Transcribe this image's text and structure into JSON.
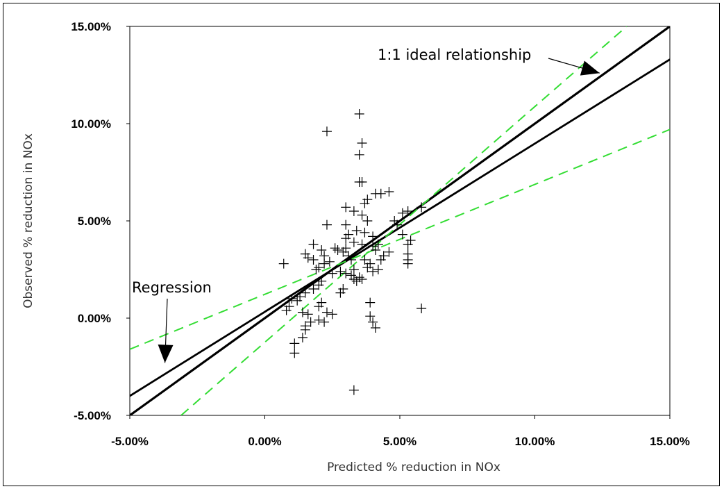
{
  "chart_data": {
    "type": "scatter",
    "title": "",
    "xlabel": "Predicted % reduction in NOx",
    "ylabel": "Observed % reduction in NOx",
    "xlim": [
      -5,
      15
    ],
    "ylim": [
      -5,
      15
    ],
    "x_ticks": [
      "-5.00%",
      "0.00%",
      "5.00%",
      "10.00%",
      "15.00%"
    ],
    "y_ticks": [
      "-5.00%",
      "0.00%",
      "5.00%",
      "10.00%",
      "15.00%"
    ],
    "x_tick_values": [
      -5,
      0,
      5,
      10,
      15
    ],
    "y_tick_values": [
      -5,
      0,
      5,
      10,
      15
    ],
    "grid": false,
    "marker": "+",
    "points": [
      [
        2.3,
        9.6
      ],
      [
        3.5,
        10.5
      ],
      [
        3.6,
        9.0
      ],
      [
        3.5,
        8.4
      ],
      [
        3.5,
        7.0
      ],
      [
        3.6,
        7.0
      ],
      [
        3.8,
        6.1
      ],
      [
        4.1,
        6.4
      ],
      [
        4.6,
        6.5
      ],
      [
        4.3,
        6.4
      ],
      [
        3.0,
        5.7
      ],
      [
        3.7,
        5.9
      ],
      [
        3.6,
        5.3
      ],
      [
        3.3,
        5.5
      ],
      [
        3.8,
        5.0
      ],
      [
        2.3,
        4.8
      ],
      [
        3.0,
        4.8
      ],
      [
        3.4,
        4.5
      ],
      [
        3.1,
        4.3
      ],
      [
        3.0,
        4.1
      ],
      [
        3.7,
        4.4
      ],
      [
        4.0,
        4.2
      ],
      [
        3.3,
        3.9
      ],
      [
        3.6,
        3.8
      ],
      [
        4.0,
        3.7
      ],
      [
        4.1,
        3.5
      ],
      [
        4.2,
        3.8
      ],
      [
        4.8,
        5.0
      ],
      [
        4.9,
        4.8
      ],
      [
        5.1,
        5.4
      ],
      [
        5.1,
        4.3
      ],
      [
        5.3,
        5.5
      ],
      [
        5.8,
        5.7
      ],
      [
        5.4,
        4.0
      ],
      [
        5.3,
        3.8
      ],
      [
        5.3,
        3.3
      ],
      [
        5.3,
        3.0
      ],
      [
        5.3,
        2.8
      ],
      [
        1.8,
        3.8
      ],
      [
        1.5,
        3.3
      ],
      [
        1.6,
        3.1
      ],
      [
        1.8,
        3.0
      ],
      [
        2.1,
        3.5
      ],
      [
        2.2,
        3.2
      ],
      [
        2.2,
        2.8
      ],
      [
        2.0,
        2.6
      ],
      [
        2.6,
        3.6
      ],
      [
        2.9,
        3.4
      ],
      [
        3.0,
        3.6
      ],
      [
        3.1,
        3.2
      ],
      [
        3.2,
        3.0
      ],
      [
        3.3,
        2.5
      ],
      [
        2.8,
        2.4
      ],
      [
        3.0,
        2.3
      ],
      [
        3.2,
        2.2
      ],
      [
        3.3,
        2.0
      ],
      [
        3.4,
        1.9
      ],
      [
        3.5,
        2.1
      ],
      [
        3.6,
        2.0
      ],
      [
        3.7,
        3.0
      ],
      [
        3.9,
        2.8
      ],
      [
        4.0,
        2.4
      ],
      [
        4.2,
        2.5
      ],
      [
        4.3,
        3.0
      ],
      [
        3.8,
        2.6
      ],
      [
        2.5,
        2.3
      ],
      [
        2.1,
        1.9
      ],
      [
        2.0,
        1.7
      ],
      [
        1.8,
        1.5
      ],
      [
        1.5,
        1.3
      ],
      [
        1.3,
        1.1
      ],
      [
        1.2,
        0.9
      ],
      [
        1.0,
        1.0
      ],
      [
        0.9,
        0.6
      ],
      [
        0.8,
        0.4
      ],
      [
        0.7,
        2.8
      ],
      [
        1.4,
        0.3
      ],
      [
        1.6,
        0.2
      ],
      [
        1.7,
        -0.2
      ],
      [
        1.5,
        -0.4
      ],
      [
        1.5,
        -0.6
      ],
      [
        1.4,
        -1.0
      ],
      [
        1.1,
        -1.3
      ],
      [
        1.1,
        -1.8
      ],
      [
        2.0,
        0.6
      ],
      [
        2.1,
        0.8
      ],
      [
        2.5,
        0.2
      ],
      [
        2.3,
        0.3
      ],
      [
        2.0,
        -0.1
      ],
      [
        2.2,
        -0.2
      ],
      [
        2.9,
        1.5
      ],
      [
        2.8,
        1.3
      ],
      [
        3.9,
        0.8
      ],
      [
        3.9,
        0.1
      ],
      [
        4.0,
        -0.2
      ],
      [
        4.1,
        -0.5
      ],
      [
        5.8,
        0.5
      ],
      [
        3.3,
        -3.7
      ],
      [
        2.7,
        3.5
      ],
      [
        2.4,
        2.9
      ],
      [
        1.9,
        2.5
      ],
      [
        4.4,
        3.2
      ],
      [
        4.6,
        3.4
      ]
    ],
    "lines": [
      {
        "role": "1:1 ideal",
        "color": "#000000",
        "width": 3.2,
        "dash": "",
        "points": [
          [
            -5,
            -5
          ],
          [
            15,
            15
          ]
        ]
      },
      {
        "role": "regression",
        "color": "#000000",
        "width": 2.8,
        "dash": "",
        "points": [
          [
            -5,
            -4.0
          ],
          [
            15,
            13.3
          ]
        ]
      },
      {
        "role": "upper confidence",
        "color": "#33dd33",
        "width": 2,
        "dash": "14,9",
        "points": [
          [
            -3.1,
            -5
          ],
          [
            13.4,
            15
          ]
        ]
      },
      {
        "role": "lower confidence",
        "color": "#33dd33",
        "width": 2,
        "dash": "14,9",
        "points": [
          [
            -5,
            -1.6
          ],
          [
            15,
            9.7
          ]
        ]
      }
    ],
    "annotations": [
      {
        "text": "1:1 ideal relationship",
        "arrow_to": [
          12.4,
          12.6
        ]
      },
      {
        "text": "Regression",
        "arrow_to": [
          -3.7,
          -2.3
        ]
      }
    ]
  }
}
